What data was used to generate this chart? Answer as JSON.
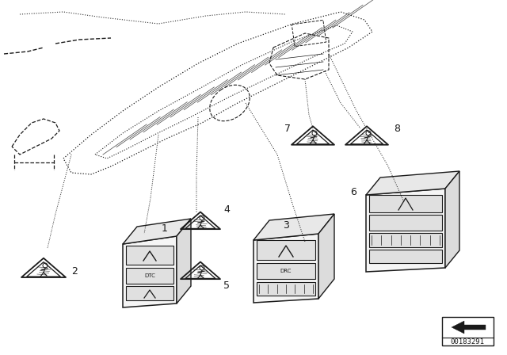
{
  "background_color": "#ffffff",
  "line_color": "#1a1a1a",
  "diagram_id": "00183291",
  "fig_width": 6.4,
  "fig_height": 4.48,
  "dpi": 100
}
